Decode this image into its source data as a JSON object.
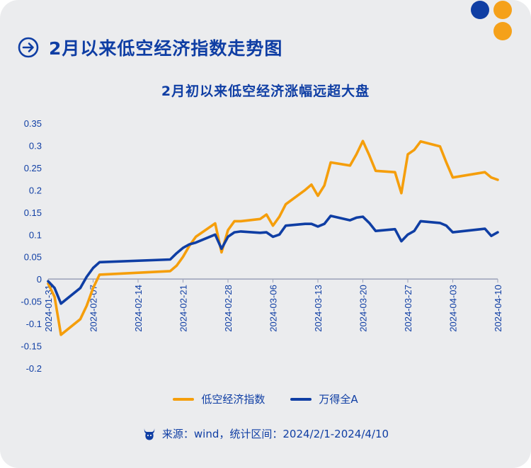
{
  "header": {
    "title": "2月以来低空经济指数走势图"
  },
  "chart_data": {
    "type": "line",
    "title": "2月初以来低空经济涨幅远超大盘",
    "x_labels": [
      "2024-01-31",
      "2024-02-07",
      "2024-02-14",
      "2024-02-21",
      "2024-02-28",
      "2024-03-06",
      "2024-03-13",
      "2024-03-20",
      "2024-03-27",
      "2024-04-03",
      "2024-04-10"
    ],
    "y_ticks": [
      "0.35",
      "0.3",
      "0.25",
      "0.2",
      "0.15",
      "0.1",
      "0.05",
      "0",
      "-0.05",
      "-0.1",
      "-0.15",
      "-0.2"
    ],
    "ylim": [
      -0.2,
      0.35
    ],
    "xlim": [
      "2024-01-31",
      "2024-04-10"
    ],
    "series": [
      {
        "name": "低空经济指数",
        "color": "#f59e0b",
        "points": [
          [
            "2024-01-31",
            -0.01
          ],
          [
            "2024-02-01",
            -0.04
          ],
          [
            "2024-02-02",
            -0.125
          ],
          [
            "2024-02-05",
            -0.09
          ],
          [
            "2024-02-06",
            -0.06
          ],
          [
            "2024-02-07",
            -0.02
          ],
          [
            "2024-02-08",
            0.01
          ],
          [
            "2024-02-19",
            0.018
          ],
          [
            "2024-02-20",
            0.03
          ],
          [
            "2024-02-21",
            0.05
          ],
          [
            "2024-02-22",
            0.075
          ],
          [
            "2024-02-23",
            0.095
          ],
          [
            "2024-02-26",
            0.125
          ],
          [
            "2024-02-27",
            0.06
          ],
          [
            "2024-02-28",
            0.11
          ],
          [
            "2024-02-29",
            0.13
          ],
          [
            "2024-03-01",
            0.13
          ],
          [
            "2024-03-04",
            0.135
          ],
          [
            "2024-03-05",
            0.145
          ],
          [
            "2024-03-06",
            0.12
          ],
          [
            "2024-03-07",
            0.14
          ],
          [
            "2024-03-08",
            0.168
          ],
          [
            "2024-03-11",
            0.2
          ],
          [
            "2024-03-12",
            0.212
          ],
          [
            "2024-03-13",
            0.187
          ],
          [
            "2024-03-14",
            0.21
          ],
          [
            "2024-03-15",
            0.262
          ],
          [
            "2024-03-18",
            0.255
          ],
          [
            "2024-03-19",
            0.28
          ],
          [
            "2024-03-20",
            0.31
          ],
          [
            "2024-03-21",
            0.278
          ],
          [
            "2024-03-22",
            0.243
          ],
          [
            "2024-03-25",
            0.24
          ],
          [
            "2024-03-26",
            0.193
          ],
          [
            "2024-03-27",
            0.28
          ],
          [
            "2024-03-28",
            0.29
          ],
          [
            "2024-03-29",
            0.309
          ],
          [
            "2024-04-01",
            0.298
          ],
          [
            "2024-04-02",
            0.262
          ],
          [
            "2024-04-03",
            0.228
          ],
          [
            "2024-04-08",
            0.24
          ],
          [
            "2024-04-09",
            0.228
          ],
          [
            "2024-04-10",
            0.223
          ]
        ]
      },
      {
        "name": "万得全A",
        "color": "#0f3ea4",
        "points": [
          [
            "2024-01-31",
            -0.005
          ],
          [
            "2024-02-01",
            -0.02
          ],
          [
            "2024-02-02",
            -0.055
          ],
          [
            "2024-02-05",
            -0.02
          ],
          [
            "2024-02-06",
            0.005
          ],
          [
            "2024-02-07",
            0.025
          ],
          [
            "2024-02-08",
            0.038
          ],
          [
            "2024-02-19",
            0.044
          ],
          [
            "2024-02-20",
            0.058
          ],
          [
            "2024-02-21",
            0.07
          ],
          [
            "2024-02-22",
            0.078
          ],
          [
            "2024-02-23",
            0.082
          ],
          [
            "2024-02-26",
            0.1
          ],
          [
            "2024-02-27",
            0.068
          ],
          [
            "2024-02-28",
            0.095
          ],
          [
            "2024-02-29",
            0.105
          ],
          [
            "2024-03-01",
            0.107
          ],
          [
            "2024-03-04",
            0.104
          ],
          [
            "2024-03-05",
            0.105
          ],
          [
            "2024-03-06",
            0.095
          ],
          [
            "2024-03-07",
            0.1
          ],
          [
            "2024-03-08",
            0.12
          ],
          [
            "2024-03-11",
            0.124
          ],
          [
            "2024-03-12",
            0.124
          ],
          [
            "2024-03-13",
            0.118
          ],
          [
            "2024-03-14",
            0.124
          ],
          [
            "2024-03-15",
            0.142
          ],
          [
            "2024-03-18",
            0.132
          ],
          [
            "2024-03-19",
            0.138
          ],
          [
            "2024-03-20",
            0.14
          ],
          [
            "2024-03-21",
            0.126
          ],
          [
            "2024-03-22",
            0.108
          ],
          [
            "2024-03-25",
            0.112
          ],
          [
            "2024-03-26",
            0.085
          ],
          [
            "2024-03-27",
            0.1
          ],
          [
            "2024-03-28",
            0.108
          ],
          [
            "2024-03-29",
            0.13
          ],
          [
            "2024-04-01",
            0.126
          ],
          [
            "2024-04-02",
            0.12
          ],
          [
            "2024-04-03",
            0.105
          ],
          [
            "2024-04-08",
            0.113
          ],
          [
            "2024-04-09",
            0.097
          ],
          [
            "2024-04-10",
            0.105
          ]
        ]
      }
    ]
  },
  "source": {
    "text": "来源：wind，统计区间：2024/2/1-2024/4/10"
  }
}
